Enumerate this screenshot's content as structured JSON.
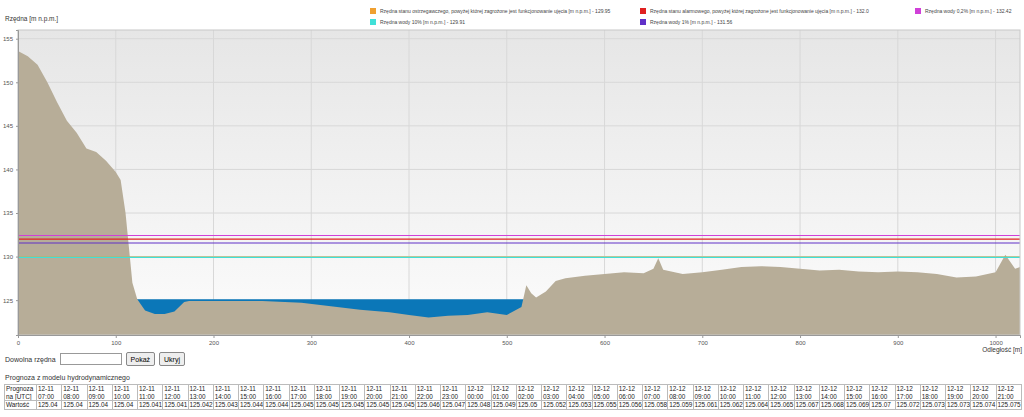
{
  "chart_data": {
    "type": "area",
    "ylabel": "Rzędna [m n.p.m.]",
    "xlabel": "Odległość [m]",
    "xlim": [
      0,
      1025
    ],
    "ylim": [
      121,
      156
    ],
    "xticks": [
      0,
      100,
      200,
      300,
      400,
      500,
      600,
      700,
      800,
      900,
      1000
    ],
    "yticks": [
      125,
      130,
      135,
      140,
      145,
      150,
      155
    ],
    "grid": true,
    "series": [
      {
        "type": "fill",
        "color": "#0b77b8",
        "x": [
          118,
          522
        ],
        "values": [
          125.1,
          125.1
        ]
      },
      {
        "type": "area",
        "color": "#b7ad98",
        "x": [
          0,
          10,
          20,
          30,
          40,
          50,
          60,
          70,
          80,
          90,
          100,
          105,
          110,
          113,
          117,
          122,
          130,
          140,
          150,
          160,
          170,
          175,
          200,
          250,
          290,
          320,
          350,
          380,
          400,
          420,
          440,
          460,
          480,
          500,
          515,
          520,
          525,
          530,
          540,
          550,
          560,
          580,
          600,
          620,
          640,
          650,
          655,
          660,
          680,
          700,
          720,
          740,
          760,
          780,
          800,
          820,
          840,
          860,
          880,
          900,
          920,
          940,
          960,
          980,
          1000,
          1010,
          1020,
          1025
        ],
        "values": [
          153.6,
          153,
          152,
          150,
          147.7,
          145.6,
          144.2,
          142.4,
          142,
          141,
          139.7,
          138.8,
          135,
          131.6,
          127,
          125.1,
          123.8,
          123.4,
          123.4,
          123.7,
          124.8,
          124.9,
          124.9,
          124.9,
          124.7,
          124.3,
          123.9,
          123.6,
          123.3,
          123.0,
          123.2,
          123.3,
          123.6,
          123.3,
          124.2,
          126.7,
          125.8,
          125.3,
          126,
          127.2,
          127.5,
          127.8,
          128.0,
          128.2,
          128.1,
          128.6,
          129.8,
          128.5,
          128,
          128.2,
          128.5,
          128.8,
          128.9,
          128.8,
          128.6,
          128.4,
          128.5,
          128.3,
          128.2,
          128.3,
          128.2,
          128,
          127.6,
          127.7,
          128.2,
          130.2,
          128.6,
          128.8
        ]
      }
    ],
    "reference_lines": [
      {
        "name": "Rzędna stanu ostrzegawczego, powyżej której zagrożone jest funkcjonowanie ujęcia [m n.p.m.] - 129.95",
        "color": "#f0a030",
        "value": 129.95
      },
      {
        "name": "Rzędna stanu alarmowego, powyżej której zagrożone jest funkcjonowanie ujęcia [m n.p.m.] - 132.0",
        "color": "#e02020",
        "value": 132.0
      },
      {
        "name": "Rzędna wody 0,2% [m n.p.m.] - 132.42",
        "color": "#d040d8",
        "value": 132.42
      },
      {
        "name": "Rzędna wody 10% [m n.p.m.] - 129.91",
        "color": "#40e0d8",
        "value": 129.91
      },
      {
        "name": "Rzędna wody 1% [m n.p.m.] - 131.56",
        "color": "#6030c8",
        "value": 131.56
      }
    ]
  },
  "controls": {
    "label": "Dowolna rzędna",
    "buttons": [
      "Pokaż",
      "Ukryj"
    ]
  },
  "forecast": {
    "title": "Prognoza z modelu hydrodynamicznego",
    "header": "Prognoza na [UTC]",
    "row_label": "Wartość",
    "times": [
      "12-11 07:00",
      "12-11 08:00",
      "12-11 09:00",
      "12-11 10:00",
      "12-11 11:00",
      "12-11 12:00",
      "12-11 13:00",
      "12-11 14:00",
      "12-11 15:00",
      "12-11 16:00",
      "12-11 17:00",
      "12-11 18:00",
      "12-11 19:00",
      "12-11 20:00",
      "12-11 21:00",
      "12-11 22:00",
      "12-11 23:00",
      "12-12 00:00",
      "12-12 01:00",
      "12-12 02:00",
      "12-12 03:00",
      "12-12 04:00",
      "12-12 05:00",
      "12-12 06:00",
      "12-12 07:00",
      "12-12 08:00",
      "12-12 09:00",
      "12-12 10:00",
      "12-12 11:00",
      "12-12 12:00",
      "12-12 13:00",
      "12-12 14:00",
      "12-12 15:00",
      "12-12 16:00",
      "12-12 17:00",
      "12-12 18:00",
      "12-12 19:00",
      "12-12 20:00",
      "12-12 21:00"
    ],
    "values": [
      125.04,
      125.04,
      125.04,
      125.04,
      125.041,
      125.041,
      125.042,
      125.043,
      125.044,
      125.044,
      125.045,
      125.045,
      125.045,
      125.045,
      125.045,
      125.046,
      125.047,
      125.048,
      125.049,
      125.05,
      125.052,
      125.053,
      125.055,
      125.056,
      125.058,
      125.059,
      125.061,
      125.062,
      125.064,
      125.065,
      125.067,
      125.068,
      125.069,
      125.07,
      125.072,
      125.073,
      125.073,
      125.074,
      125.075
    ]
  }
}
